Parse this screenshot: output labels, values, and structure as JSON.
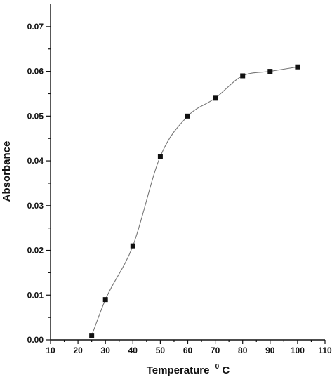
{
  "chart_data": {
    "type": "scatter",
    "title": "",
    "xlabel": "Temperature",
    "xlabel_sup": "0",
    "xlabel_unit": "C",
    "ylabel": "Absorbance",
    "xlim": [
      10,
      110
    ],
    "ylim": [
      0,
      0.075
    ],
    "xticks": [
      "10",
      "20",
      "30",
      "40",
      "50",
      "60",
      "70",
      "80",
      "90",
      "100",
      "110"
    ],
    "yticks": [
      "0.00",
      "0.01",
      "0.02",
      "0.03",
      "0.04",
      "0.05",
      "0.06",
      "0.07"
    ],
    "grid": false,
    "series": [
      {
        "x": [
          25,
          30,
          40,
          50,
          60,
          70,
          80,
          90,
          100
        ],
        "y": [
          0.001,
          0.009,
          0.021,
          0.041,
          0.05,
          0.054,
          0.059,
          0.06,
          0.061
        ],
        "marker": "square",
        "fit_curve": true,
        "color": "#111111",
        "curve_color": "#777777"
      }
    ]
  }
}
